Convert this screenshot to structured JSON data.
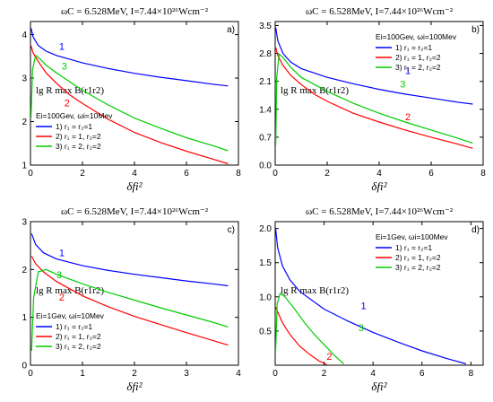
{
  "colors": {
    "c1": "#0000ff",
    "c2": "#ff0000",
    "c3": "#00cc00"
  },
  "chart_data": [
    {
      "type": "line",
      "panel": "a)",
      "title": "ωC = 6.528MeV, I=7.44×10²⁶Wcm⁻²",
      "xlabel": "δfi²",
      "ylabel": "lg R max B(r1r2)",
      "xlim": [
        0,
        8
      ],
      "ylim": [
        1,
        4.3
      ],
      "xticks": [
        0,
        2,
        4,
        6,
        8
      ],
      "yticks": [
        1,
        2,
        3,
        4
      ],
      "legend_position": "bottom-left",
      "legend_header": "Ei=100Gev, ωi=10Mev",
      "series": [
        {
          "name": "1) r₁ = r₂=1",
          "label": "1",
          "x": [
            0.02,
            0.1,
            0.3,
            0.6,
            1,
            2,
            3,
            4,
            5,
            6,
            7,
            7.6
          ],
          "y": [
            4.15,
            3.95,
            3.75,
            3.62,
            3.52,
            3.35,
            3.22,
            3.11,
            3.02,
            2.94,
            2.86,
            2.82
          ]
        },
        {
          "name": "2) r₁ = 1, r₂=2",
          "label": "2",
          "x": [
            0.02,
            0.1,
            0.3,
            0.6,
            1,
            1.5,
            2,
            3,
            4,
            5,
            6,
            7,
            7.6
          ],
          "y": [
            3.75,
            3.58,
            3.38,
            3.12,
            2.88,
            2.62,
            2.42,
            2.05,
            1.75,
            1.52,
            1.32,
            1.14,
            1.03
          ]
        },
        {
          "name": "3) r₁ = 2, r₂=2",
          "label": "3",
          "x": [
            0.02,
            0.08,
            0.2,
            0.35,
            0.6,
            1,
            2,
            3,
            4,
            5,
            6,
            7,
            7.6
          ],
          "y": [
            2.1,
            3.2,
            3.52,
            3.45,
            3.3,
            3.12,
            2.72,
            2.38,
            2.08,
            1.85,
            1.63,
            1.45,
            1.33
          ]
        }
      ]
    },
    {
      "type": "line",
      "panel": "b)",
      "title": "ωC = 6.528MeV, I=7.44×10²⁶Wcm⁻²",
      "xlabel": "δfi²",
      "ylabel": "lg R max B(r1r2)",
      "xlim": [
        0,
        8
      ],
      "ylim": [
        0,
        3.6
      ],
      "xticks": [
        0,
        2,
        4,
        6,
        8
      ],
      "yticks": [
        0.0,
        0.7,
        1.4,
        2.1,
        2.8,
        3.5
      ],
      "legend_position": "top-right",
      "legend_header": "Ei=100Gev, ωi=100Mev",
      "series": [
        {
          "name": "1) r₁ = r₂=1",
          "label": "1",
          "x": [
            0.02,
            0.1,
            0.3,
            0.6,
            1,
            2,
            3,
            4,
            5,
            6,
            7,
            7.6
          ],
          "y": [
            3.45,
            3.12,
            2.8,
            2.58,
            2.42,
            2.2,
            2.04,
            1.9,
            1.78,
            1.68,
            1.58,
            1.53
          ]
        },
        {
          "name": "2) r₁ = 1, r₂=2",
          "label": "2",
          "x": [
            0.02,
            0.1,
            0.3,
            0.6,
            1,
            1.5,
            2,
            3,
            4,
            5,
            6,
            7,
            7.6
          ],
          "y": [
            2.95,
            2.75,
            2.5,
            2.25,
            2.02,
            1.78,
            1.6,
            1.3,
            1.08,
            0.88,
            0.7,
            0.53,
            0.42
          ]
        },
        {
          "name": "3) r₁ = 2, r₂=2",
          "label": "3",
          "x": [
            0.02,
            0.06,
            0.15,
            0.3,
            0.6,
            1,
            2,
            3,
            4,
            5,
            6,
            7,
            7.6
          ],
          "y": [
            0.5,
            2.2,
            2.78,
            2.7,
            2.45,
            2.2,
            1.85,
            1.55,
            1.3,
            1.08,
            0.88,
            0.68,
            0.55
          ]
        }
      ]
    },
    {
      "type": "line",
      "panel": "c)",
      "title": "ωC = 6.528MeV, I=7.44×10²⁶Wcm⁻²",
      "xlabel": "δfi²",
      "ylabel": "lg R max B(r1r2)",
      "xlim": [
        0,
        4
      ],
      "ylim": [
        0,
        3
      ],
      "xticks": [
        0,
        1,
        2,
        3,
        4
      ],
      "yticks": [
        0,
        1,
        2,
        3
      ],
      "legend_position": "bottom-left",
      "legend_header": "Ei=1Gev, ωi=10Mev",
      "series": [
        {
          "name": "1) r₁ = r₂=1",
          "label": "1",
          "x": [
            0.02,
            0.1,
            0.25,
            0.5,
            1,
            1.5,
            2,
            2.5,
            3,
            3.5,
            3.8
          ],
          "y": [
            2.75,
            2.52,
            2.35,
            2.22,
            2.08,
            1.98,
            1.9,
            1.83,
            1.76,
            1.7,
            1.66
          ]
        },
        {
          "name": "2) r₁ = 1, r₂=2",
          "label": "2",
          "x": [
            0.02,
            0.1,
            0.25,
            0.5,
            1,
            1.5,
            2,
            2.5,
            3,
            3.5,
            3.8
          ],
          "y": [
            2.28,
            2.12,
            1.95,
            1.75,
            1.45,
            1.22,
            1.02,
            0.85,
            0.68,
            0.52,
            0.42
          ]
        },
        {
          "name": "3) r₁ = 2, r₂=2",
          "label": "3",
          "x": [
            0.02,
            0.06,
            0.15,
            0.3,
            0.5,
            1,
            1.5,
            2,
            2.5,
            3,
            3.5,
            3.8
          ],
          "y": [
            0.3,
            1.4,
            1.95,
            2.0,
            1.9,
            1.7,
            1.52,
            1.36,
            1.2,
            1.05,
            0.9,
            0.8
          ]
        }
      ]
    },
    {
      "type": "line",
      "panel": "d)",
      "title": "ωC = 6.528MeV, I=7.44×10²⁶Wcm⁻²",
      "xlabel": "δfi²",
      "ylabel": "lg R max B(r1r2)",
      "xlim": [
        0,
        8.5
      ],
      "ylim": [
        0,
        2.1
      ],
      "xticks": [
        0,
        2,
        4,
        6,
        8
      ],
      "yticks": [
        0.5,
        1.0,
        1.5,
        2.0
      ],
      "legend_position": "top-right",
      "legend_header": "Ei=1Gev, ωi=100Mev",
      "series": [
        {
          "name": "1) r₁ = r₂=1",
          "label": "1",
          "x": [
            0.02,
            0.1,
            0.3,
            0.6,
            1,
            2,
            3,
            4,
            5,
            6,
            7,
            7.8
          ],
          "y": [
            2.0,
            1.72,
            1.45,
            1.25,
            1.08,
            0.82,
            0.64,
            0.48,
            0.34,
            0.21,
            0.1,
            0.02
          ]
        },
        {
          "name": "2) r₁ = 1, r₂=2",
          "label": "2",
          "x": [
            0.02,
            0.1,
            0.3,
            0.6,
            1,
            1.4,
            1.8,
            2.1
          ],
          "y": [
            0.85,
            0.78,
            0.62,
            0.45,
            0.28,
            0.16,
            0.06,
            0.01
          ]
        },
        {
          "name": "3) r₁ = 2, r₂=2",
          "label": "3",
          "x": [
            0.02,
            0.08,
            0.2,
            0.4,
            0.8,
            1.2,
            1.6,
            2.0,
            2.4,
            2.8
          ],
          "y": [
            0.2,
            0.9,
            1.05,
            1.0,
            0.82,
            0.62,
            0.45,
            0.3,
            0.15,
            0.02
          ]
        }
      ]
    }
  ]
}
